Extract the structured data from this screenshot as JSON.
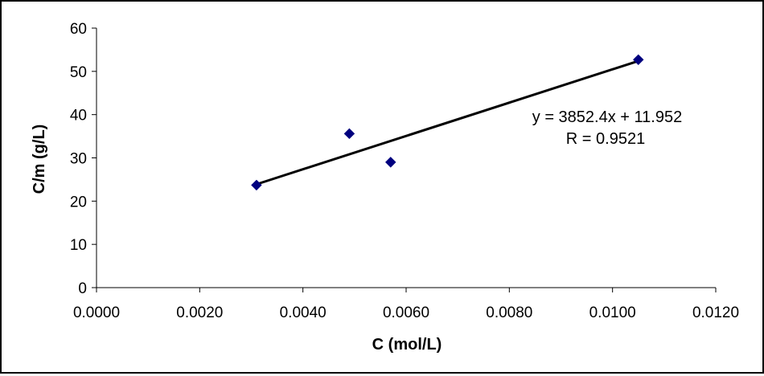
{
  "chart_data": {
    "type": "scatter",
    "xlabel": "C (mol/L)",
    "ylabel": "C/m (g/L)",
    "xlim": [
      0,
      0.012
    ],
    "ylim": [
      0,
      60
    ],
    "x_ticks": [
      "0.0000",
      "0.0020",
      "0.0040",
      "0.0060",
      "0.0080",
      "0.0100",
      "0.0120"
    ],
    "y_ticks": [
      "0",
      "10",
      "20",
      "30",
      "40",
      "50",
      "60"
    ],
    "grid": false,
    "legend": "none",
    "series": [
      {
        "x": [
          0.0031,
          0.0049,
          0.0057,
          0.0105
        ],
        "y": [
          23.7,
          35.6,
          29.0,
          52.7
        ],
        "marker": "diamond",
        "color": "#00007f"
      }
    ],
    "trendline": {
      "type": "linear",
      "slope": 3852.4,
      "intercept": 11.952,
      "x_range": [
        0.0031,
        0.0105
      ],
      "color": "#000000"
    },
    "annotations": {
      "equation": "y = 3852.4x + 11.952",
      "r_value": "R = 0.9521"
    }
  }
}
